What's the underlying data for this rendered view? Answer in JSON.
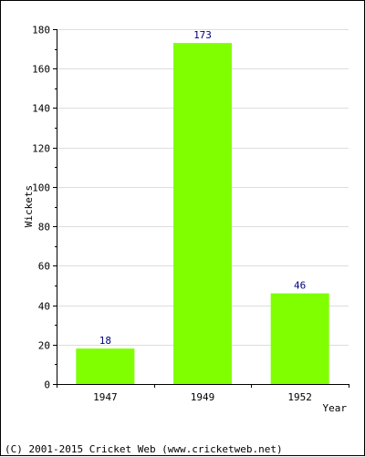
{
  "chart_data": {
    "type": "bar",
    "categories": [
      "1947",
      "1949",
      "1952"
    ],
    "values": [
      18,
      173,
      46
    ],
    "data_labels": [
      "18",
      "173",
      "46"
    ],
    "xlabel": "Year",
    "ylabel": "Wickets",
    "ylim": [
      0,
      180
    ],
    "yticks": [
      0,
      20,
      40,
      60,
      80,
      100,
      120,
      140,
      160,
      180
    ],
    "grid": true,
    "legend": "none",
    "bar_color": "#80ff00",
    "label_color": "#000080"
  },
  "footer": {
    "copyright": "(C) 2001-2015 Cricket Web (www.cricketweb.net)"
  }
}
